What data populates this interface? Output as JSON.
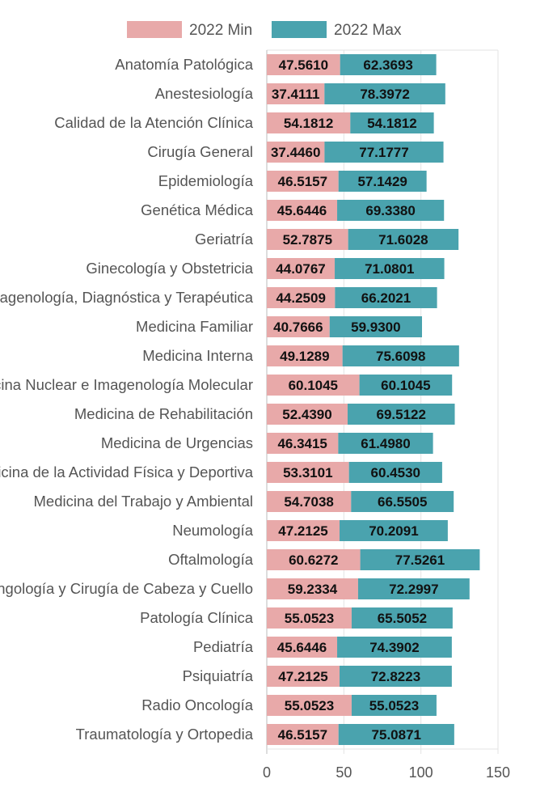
{
  "chart_data": {
    "type": "bar",
    "orientation": "horizontal",
    "stacked": true,
    "legend_position": "top",
    "grid": true,
    "xlim": [
      0,
      150
    ],
    "xticks": [
      0,
      50,
      100,
      150
    ],
    "categories": [
      "Anatomía Patológica",
      "Anestesiología",
      "Calidad de la Atención Clínica",
      "Cirugía General",
      "Epidemiología",
      "Genética Médica",
      "Geriatría",
      "Ginecología y Obstetricia",
      "Imagenología, Diagnóstica y Terapéutica",
      "Medicina Familiar",
      "Medicina Interna",
      "Medicina Nuclear e Imagenología Molecular",
      "Medicina de Rehabilitación",
      "Medicina de Urgencias",
      "Medicina de la Actividad Física y Deportiva",
      "Medicina del Trabajo y Ambiental",
      "Neumología",
      "Oftalmología",
      "Otorrinolaringología y Cirugía de Cabeza y Cuello",
      "Patología Clínica",
      "Pediatría",
      "Psiquiatría",
      "Radio Oncología",
      "Traumatología y Ortopedia"
    ],
    "series": [
      {
        "name": "2022 Min",
        "color": "#e8a9a9",
        "values": [
          47.561,
          37.4111,
          54.1812,
          37.446,
          46.5157,
          45.6446,
          52.7875,
          44.0767,
          44.2509,
          40.7666,
          49.1289,
          60.1045,
          52.439,
          46.3415,
          53.3101,
          54.7038,
          47.2125,
          60.6272,
          59.2334,
          55.0523,
          45.6446,
          47.2125,
          55.0523,
          46.5157
        ],
        "labels": [
          "47.5610",
          "37.4111",
          "54.1812",
          "37.4460",
          "46.5157",
          "45.6446",
          "52.7875",
          "44.0767",
          "44.2509",
          "40.7666",
          "49.1289",
          "60.1045",
          "52.4390",
          "46.3415",
          "53.3101",
          "54.7038",
          "47.2125",
          "60.6272",
          "59.2334",
          "55.0523",
          "45.6446",
          "47.2125",
          "55.0523",
          "46.5157"
        ]
      },
      {
        "name": "2022 Max",
        "color": "#4aa3ae",
        "values": [
          62.3693,
          78.3972,
          54.1812,
          77.1777,
          57.1429,
          69.338,
          71.6028,
          71.0801,
          66.2021,
          59.93,
          75.6098,
          60.1045,
          69.5122,
          61.498,
          60.453,
          66.5505,
          70.2091,
          77.5261,
          72.2997,
          65.5052,
          74.3902,
          72.8223,
          55.0523,
          75.0871
        ],
        "labels": [
          "62.3693",
          "78.3972",
          "54.1812",
          "77.1777",
          "57.1429",
          "69.3380",
          "71.6028",
          "71.0801",
          "66.2021",
          "59.9300",
          "75.6098",
          "60.1045",
          "69.5122",
          "61.4980",
          "60.4530",
          "66.5505",
          "70.2091",
          "77.5261",
          "72.2997",
          "65.5052",
          "74.3902",
          "72.8223",
          "55.0523",
          "75.0871"
        ]
      }
    ]
  }
}
